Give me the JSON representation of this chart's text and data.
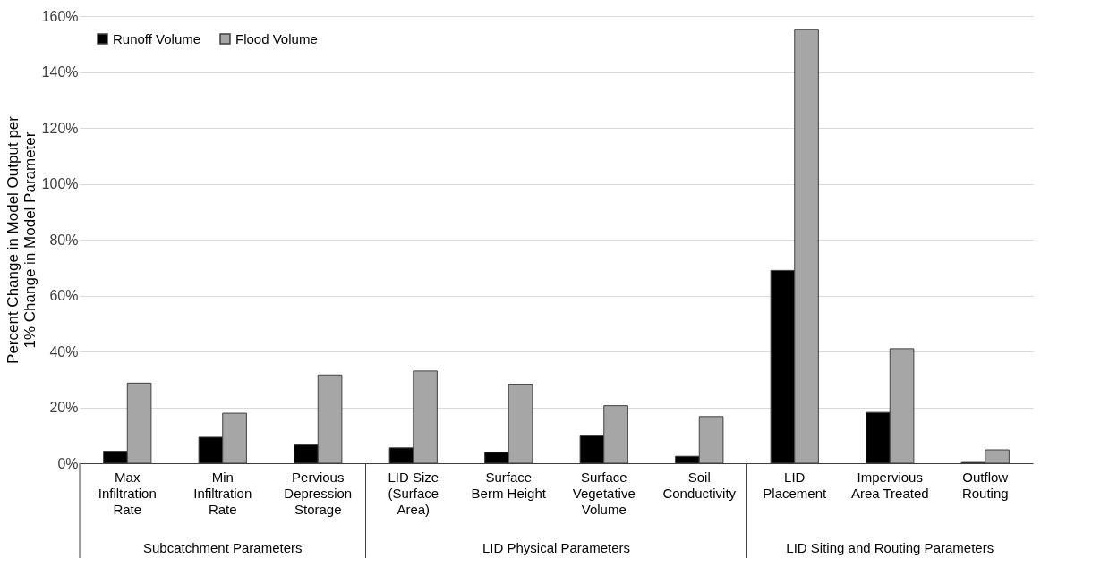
{
  "chart_data": {
    "type": "bar",
    "ylabel": "Percent Change in Model Output per\n1% Change in Model Parameter",
    "categories": [
      "Max\nInfiltration\nRate",
      "Min\nInfiltration\nRate",
      "Pervious\nDepression\nStorage",
      "LID Size\n(Surface\nArea)",
      "Surface\nBerm Height",
      "Surface\nVegetative\nVolume",
      "Soil\nConductivity",
      "LID\nPlacement",
      "Impervious\nArea Treated",
      "Outflow\nRouting"
    ],
    "series": [
      {
        "name": "Runoff Volume",
        "color": "#000000",
        "values": [
          4.3,
          9.3,
          6.6,
          5.5,
          3.9,
          9.8,
          2.5,
          69,
          18.2,
          0.3
        ]
      },
      {
        "name": "Flood Volume",
        "color": "#a6a6a6",
        "values": [
          28.7,
          17.9,
          31.6,
          33,
          28.3,
          20.6,
          16.7,
          155.3,
          41,
          4.8
        ]
      }
    ],
    "ylim": [
      0,
      160
    ],
    "yticks": [
      {
        "value": 0,
        "label": "0%"
      },
      {
        "value": 20,
        "label": "20%"
      },
      {
        "value": 40,
        "label": "40%"
      },
      {
        "value": 60,
        "label": "60%"
      },
      {
        "value": 80,
        "label": "80%"
      },
      {
        "value": 100,
        "label": "100%"
      },
      {
        "value": 120,
        "label": "120%"
      },
      {
        "value": 140,
        "label": "140%"
      },
      {
        "value": 160,
        "label": "160%"
      }
    ],
    "annotations": [
      "Subcatchment Parameters",
      "LID Physical Parameters",
      "LID Siting and Routing Parameters"
    ],
    "grid": "y",
    "legend": "top left"
  }
}
